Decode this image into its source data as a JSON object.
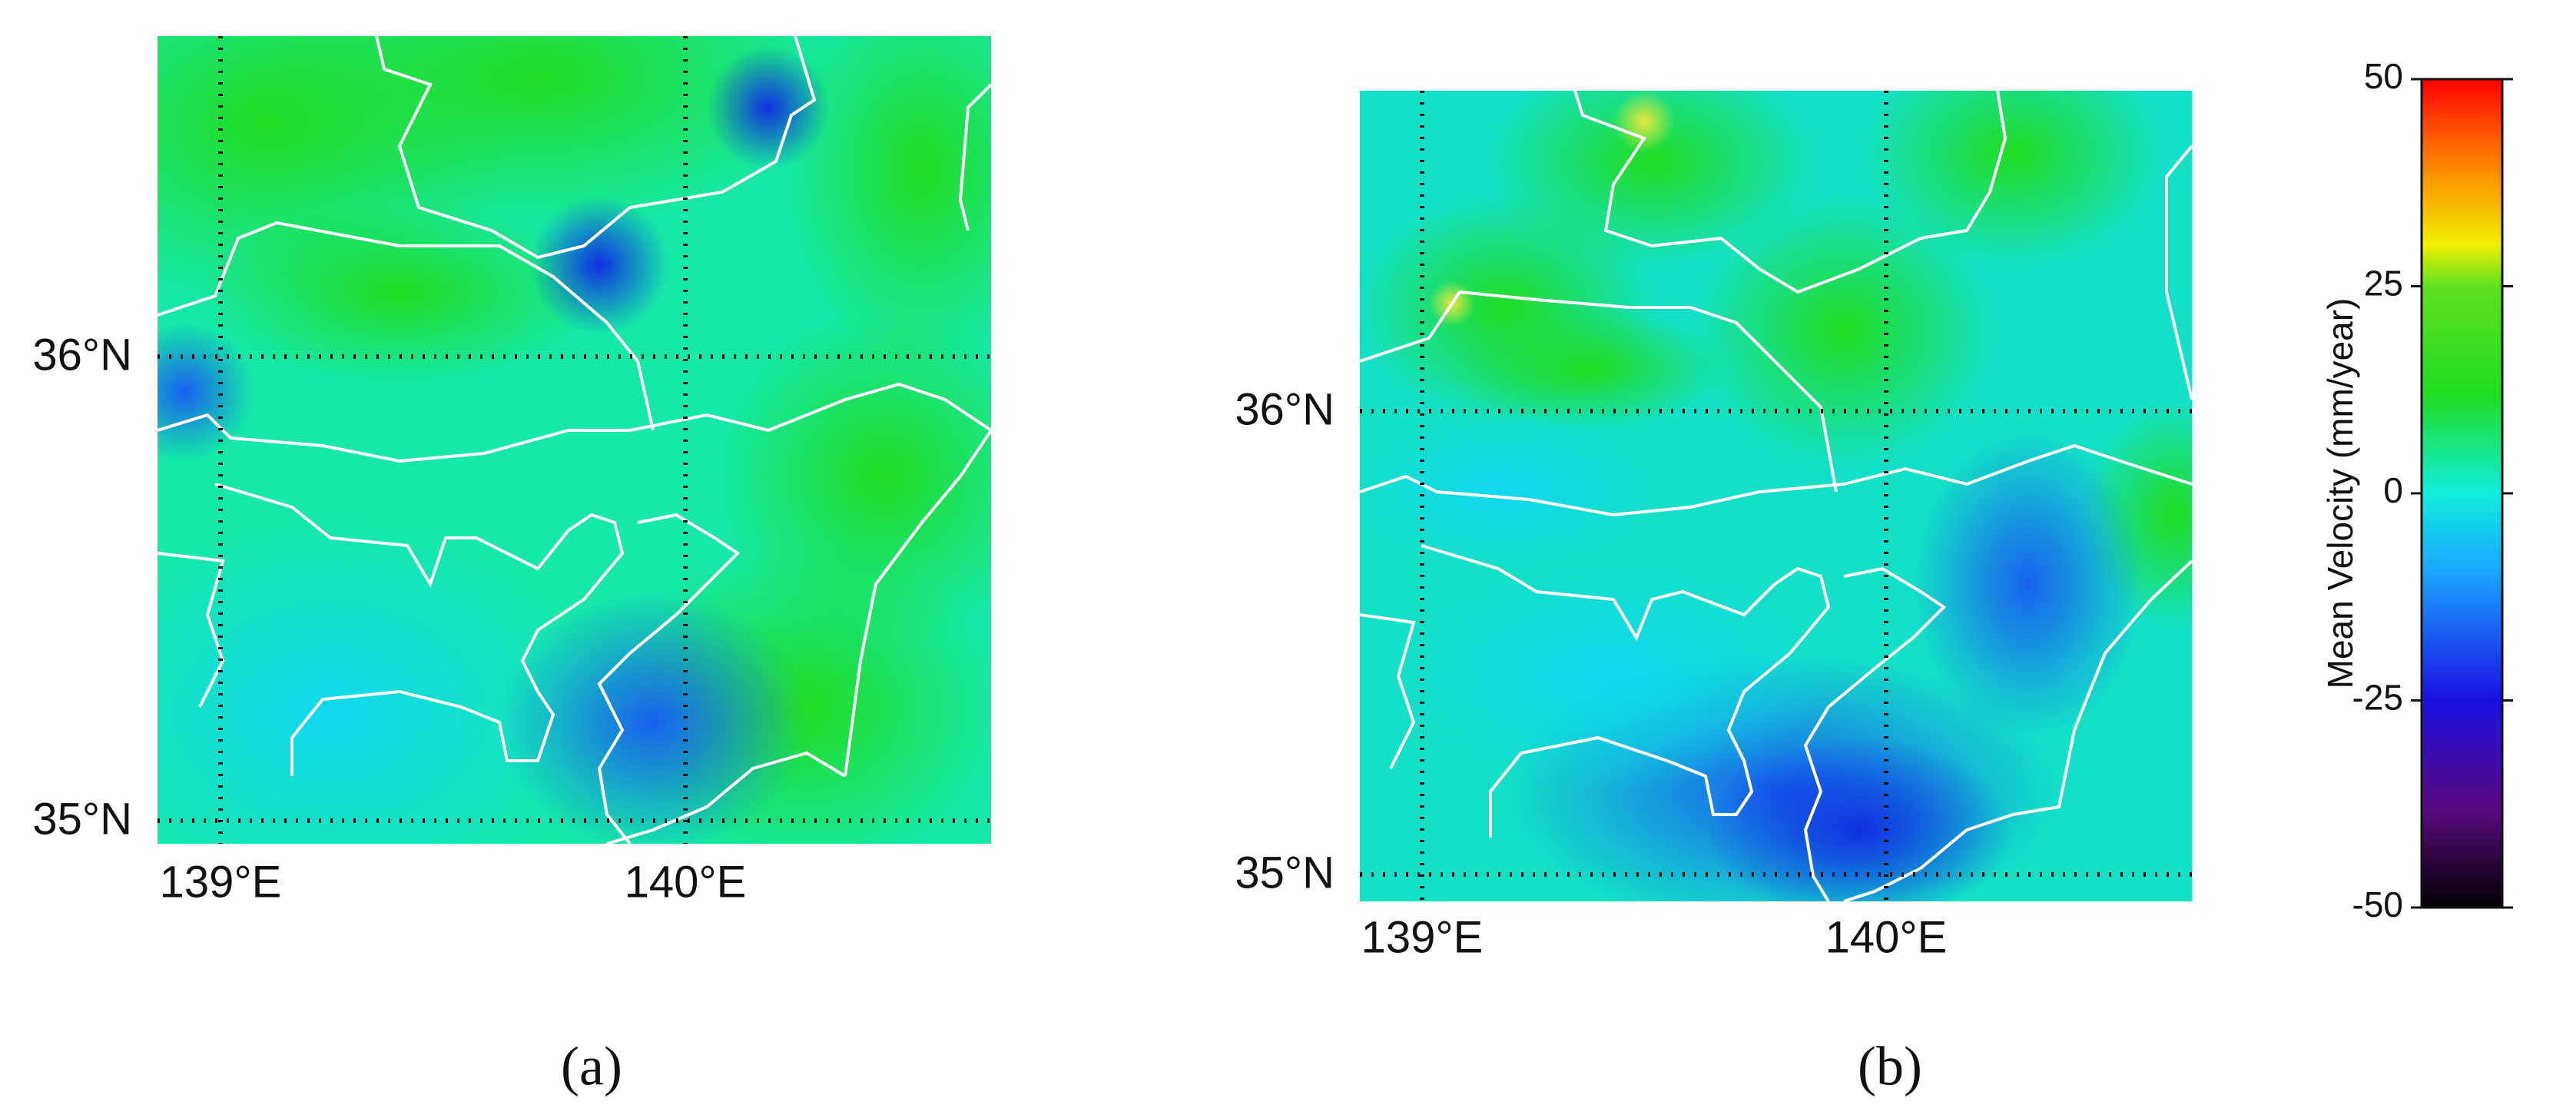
{
  "panels": [
    {
      "caption": "(a)",
      "lat_labels": [
        "36°N",
        "35°N"
      ],
      "lon_labels": [
        "139°E",
        "140°E"
      ]
    },
    {
      "caption": "(b)",
      "lat_labels": [
        "36°N",
        "35°N"
      ],
      "lon_labels": [
        "139°E",
        "140°E"
      ]
    }
  ],
  "colorbar": {
    "label": "Mean Velocity (mm/year)",
    "lim": [
      -50,
      50
    ],
    "ticks": [
      50,
      25,
      0,
      -25,
      -50
    ]
  }
}
